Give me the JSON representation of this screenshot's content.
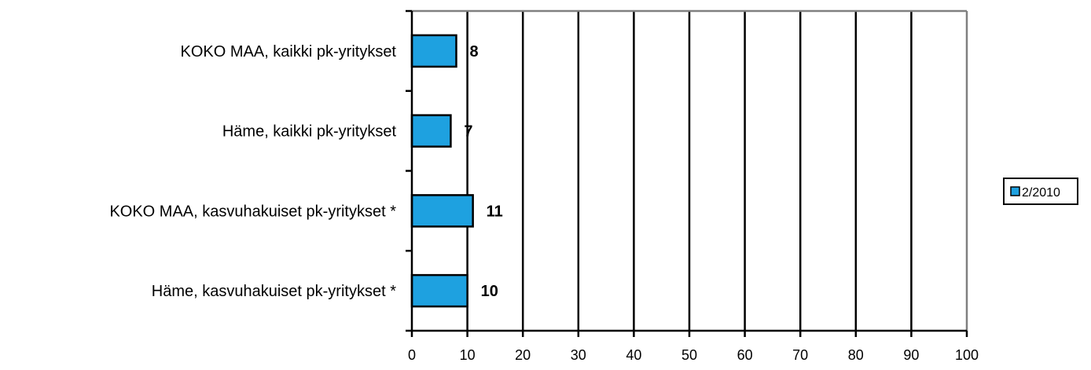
{
  "chart_data": {
    "type": "bar",
    "orientation": "horizontal",
    "categories": [
      "KOKO MAA, kaikki pk-yritykset",
      "Häme, kaikki pk-yritykset",
      "KOKO MAA, kasvuhakuiset pk-yritykset *",
      "Häme, kasvuhakuiset pk-yritykset *"
    ],
    "series": [
      {
        "name": "2/2010",
        "values": [
          8,
          7,
          11,
          10
        ],
        "color": "#1ea1e0"
      }
    ],
    "data_labels": [
      "8",
      "7",
      "11",
      "10"
    ],
    "title": "",
    "xlabel": "",
    "ylabel": "",
    "xlim": [
      0,
      100
    ],
    "x_ticks": [
      0,
      10,
      20,
      30,
      40,
      50,
      60,
      70,
      80,
      90,
      100
    ],
    "grid": true,
    "legend_position": "right",
    "colors": {
      "bar": "#1ea1e0",
      "bar_stroke": "#000000",
      "grid": "#000000",
      "frame": "#808080"
    }
  }
}
